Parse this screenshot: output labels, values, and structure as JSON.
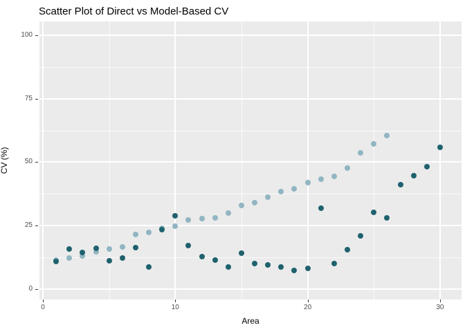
{
  "chart_data": {
    "type": "scatter",
    "title": "Scatter Plot of Direct vs Model-Based CV",
    "xlabel": "Area",
    "ylabel": "CV (%)",
    "xlim": [
      0,
      31
    ],
    "ylim": [
      0,
      100
    ],
    "x_ticks": [
      0,
      10,
      20,
      30
    ],
    "x_minor_ticks": [
      5,
      15,
      25
    ],
    "y_ticks": [
      0,
      25,
      50,
      75,
      100
    ],
    "y_minor_ticks": [
      12.5,
      37.5,
      62.5,
      87.5
    ],
    "grid": "white major and minor gridlines on",
    "legend": "none",
    "panel_background": "#EBEBEB",
    "gridline_color": "#FFFFFF",
    "axis_text_color": "#4D4D4D",
    "title_color": "#000000",
    "series": [
      {
        "name": "Model-Based CV",
        "color": "#91B5C2",
        "x": [
          1,
          2,
          3,
          4,
          5,
          6,
          7,
          8,
          9,
          10,
          11,
          12,
          13,
          14,
          15,
          16,
          17,
          18,
          19,
          20,
          21,
          22,
          23,
          24,
          25,
          26
        ],
        "y": [
          11.5,
          12.2,
          13.1,
          14.7,
          15.9,
          16.7,
          21.5,
          22.3,
          24.0,
          24.7,
          27.2,
          27.8,
          28.1,
          29.9,
          33.0,
          34.1,
          36.1,
          38.5,
          39.5,
          41.9,
          43.4,
          44.5,
          47.6,
          53.6,
          57.3,
          60.5
        ]
      },
      {
        "name": "Direct CV",
        "color": "#1F626E",
        "x": [
          1,
          2,
          3,
          4,
          5,
          6,
          7,
          8,
          9,
          10,
          11,
          12,
          13,
          14,
          15,
          16,
          17,
          18,
          19,
          20,
          21,
          22,
          23,
          24,
          25,
          26,
          27,
          28,
          29,
          30
        ],
        "y": [
          11.0,
          15.9,
          14.3,
          16.0,
          11.2,
          12.3,
          16.3,
          8.8,
          23.3,
          28.8,
          17.1,
          12.8,
          11.5,
          8.7,
          14.2,
          10.2,
          9.4,
          8.8,
          7.3,
          8.1,
          31.8,
          10.0,
          15.5,
          21.0,
          30.3,
          28.1,
          41.0,
          44.7,
          48.3,
          55.8
        ]
      }
    ]
  }
}
